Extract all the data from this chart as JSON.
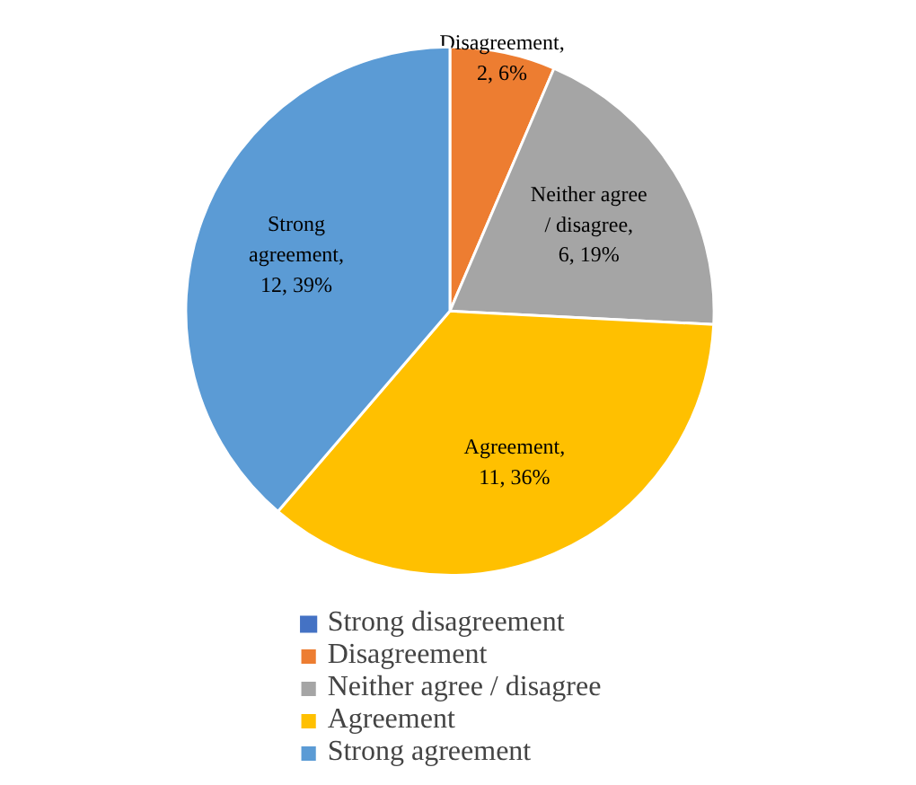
{
  "chart_data": {
    "type": "pie",
    "categories": [
      "Strong disagreement",
      "Disagreement",
      "Neither agree / disagree",
      "Agreement",
      "Strong agreement"
    ],
    "values": [
      0,
      2,
      6,
      11,
      12
    ],
    "colors": [
      "#4472c4",
      "#ed7d31",
      "#a5a5a5",
      "#ffc000",
      "#5b9bd5"
    ],
    "value_labels": [
      null,
      "Disagreement, 2, 6%",
      "Neither agree / disagree, 6, 19%",
      "Agreement, 11, 36%",
      "Strong agreement, 12, 39%"
    ],
    "legend": "bottom"
  }
}
